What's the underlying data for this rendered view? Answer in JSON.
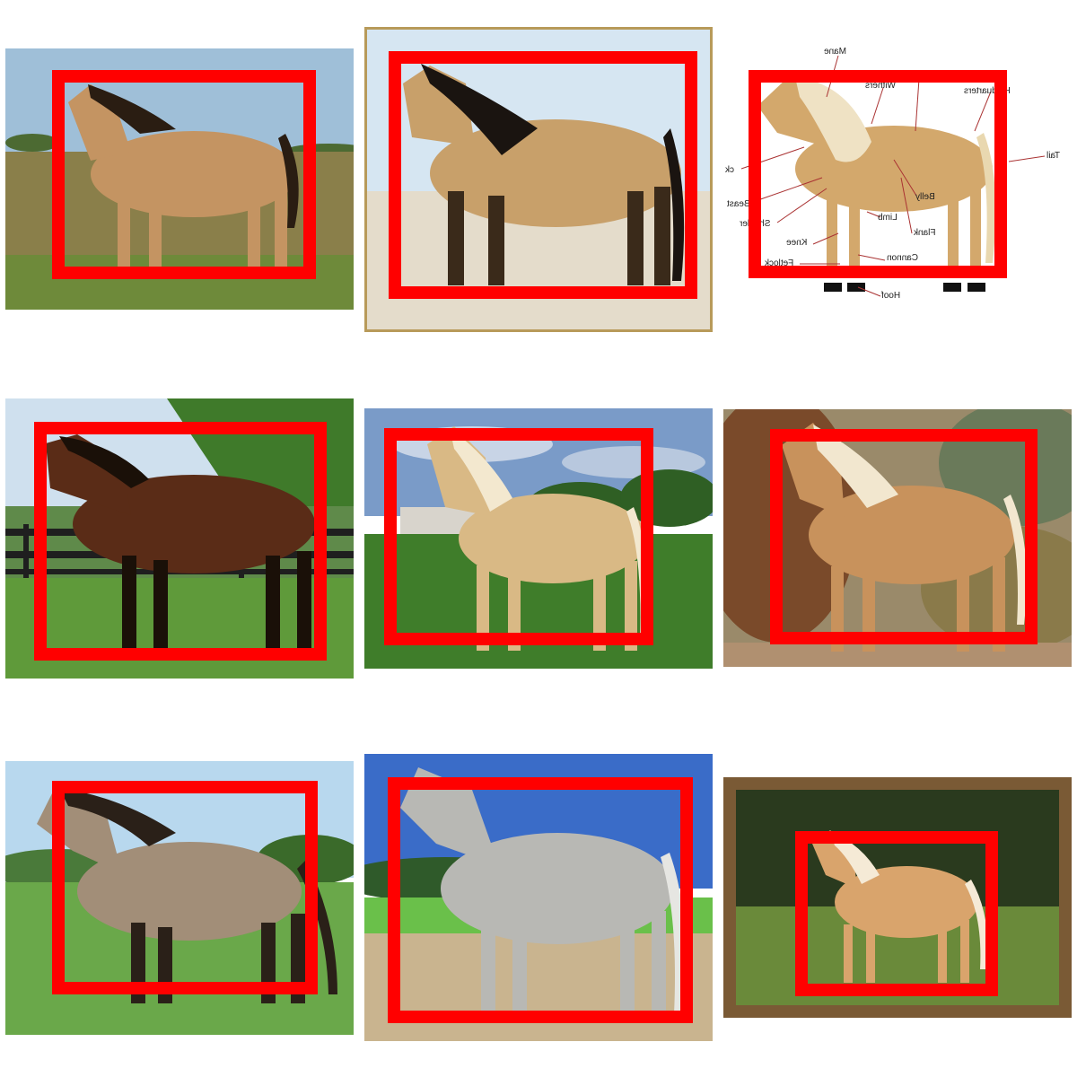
{
  "grid": {
    "panels": [
      {
        "id": "horse-1",
        "subject": "buckskin horse in pasture",
        "colors": {
          "coat": "#c49462",
          "mane": "#2a1d12",
          "sky": "#9fbfd8",
          "ground": "#8a7f4a"
        }
      },
      {
        "id": "horse-2",
        "subject": "buckskin horse on dry grass",
        "colors": {
          "coat": "#c8a06a",
          "mane": "#1a1410",
          "sky": "#d6e6f2",
          "ground": "#e4dccb"
        }
      },
      {
        "id": "horse-3",
        "subject": "labeled palomino anatomy diagram",
        "colors": {
          "coat": "#d3a86c",
          "mane": "#efe2c4",
          "sky": "#ffffff",
          "ground": "#ffffff"
        }
      },
      {
        "id": "horse-4",
        "subject": "bay horse by black fence",
        "colors": {
          "coat": "#5a2c17",
          "mane": "#1a1008",
          "sky": "#cfe0ee",
          "ground": "#5f9a3a"
        }
      },
      {
        "id": "horse-5",
        "subject": "palomino horse on green field",
        "colors": {
          "coat": "#d9b985",
          "mane": "#f3e8cf",
          "sky": "#7a9bc8",
          "ground": "#3f7d2a"
        }
      },
      {
        "id": "horse-6",
        "subject": "palomino horse with autumn background",
        "colors": {
          "coat": "#c8925c",
          "mane": "#f2e7cf",
          "sky": "#9a8a6a",
          "ground": "#b09070"
        }
      },
      {
        "id": "horse-7",
        "subject": "grullo horse on grass",
        "colors": {
          "coat": "#a28e78",
          "mane": "#2a2018",
          "sky": "#b8d8ee",
          "ground": "#6aa84a"
        }
      },
      {
        "id": "horse-8",
        "subject": "dapple gray horse on dirt",
        "colors": {
          "coat": "#b8b8b4",
          "mane": "#e6e6e2",
          "sky": "#3a6cc8",
          "ground": "#c9b48f"
        }
      },
      {
        "id": "horse-9",
        "subject": "palomino horse in wooden frame",
        "colors": {
          "coat": "#d9a46c",
          "mane": "#f5ead6",
          "sky": "#2a3a1e",
          "ground": "#6a8a3a"
        }
      }
    ],
    "box_color": "#ff0000"
  },
  "diagram": {
    "labels": [
      "Mane",
      "Withers",
      "Hindquarters",
      "Tail",
      "Neck",
      "Breast",
      "Shoulder",
      "Belly",
      "Limb",
      "Flank",
      "Knee",
      "Fetlock",
      "Cannon",
      "Hoof"
    ],
    "display_text": [
      "Mane",
      "Withers",
      "Hinduarters",
      "Tail",
      "ck",
      "Beast",
      "Shouler",
      "Belly",
      "Limb",
      "Flank",
      "Knee",
      "Fetlock",
      "Cannon",
      "Hoof"
    ]
  }
}
